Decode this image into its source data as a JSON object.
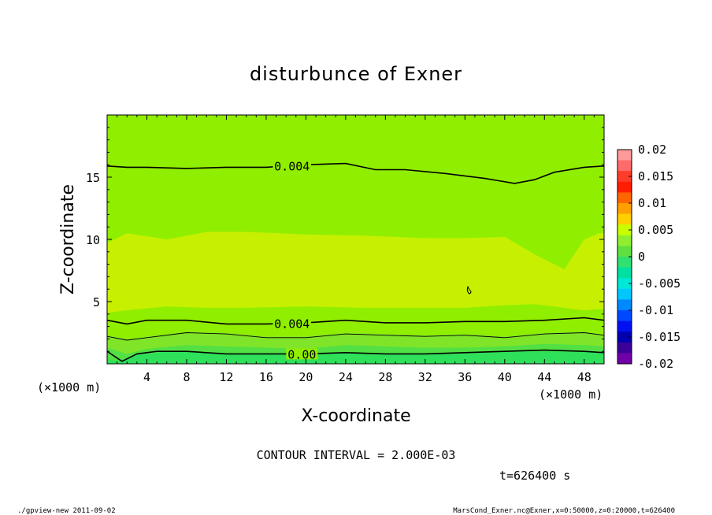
{
  "chart_data": {
    "type": "heatmap",
    "title": "disturbunce of Exner",
    "xlabel": "X-coordinate",
    "ylabel": "Z-coordinate",
    "x_unit": "(×1000 m)",
    "y_unit": "(×1000 m)",
    "xlim": [
      0,
      50
    ],
    "ylim": [
      0,
      20
    ],
    "xticks": [
      4,
      8,
      12,
      16,
      20,
      24,
      28,
      32,
      36,
      40,
      44,
      48
    ],
    "yticks": [
      5,
      10,
      15
    ],
    "colorbar": {
      "ticks": [
        "0.02",
        "0.015",
        "0.01",
        "0.005",
        "0",
        "-0.005",
        "-0.01",
        "-0.015",
        "-0.02"
      ],
      "values": [
        0.02,
        0.015,
        0.01,
        0.005,
        0,
        -0.005,
        -0.01,
        -0.015,
        -0.02
      ],
      "levels": [
        {
          "from": 0.018,
          "to": 0.02,
          "color": "#ff9a9a"
        },
        {
          "from": 0.016,
          "to": 0.018,
          "color": "#ff6a6a"
        },
        {
          "from": 0.014,
          "to": 0.016,
          "color": "#ff3c2a"
        },
        {
          "from": 0.012,
          "to": 0.014,
          "color": "#ff1e00"
        },
        {
          "from": 0.01,
          "to": 0.012,
          "color": "#ff6600"
        },
        {
          "from": 0.008,
          "to": 0.01,
          "color": "#ffa000"
        },
        {
          "from": 0.006,
          "to": 0.008,
          "color": "#ffd000"
        },
        {
          "from": 0.004,
          "to": 0.006,
          "color": "#c8ff00"
        },
        {
          "from": 0.002,
          "to": 0.004,
          "color": "#90ee30"
        },
        {
          "from": 0.0,
          "to": 0.002,
          "color": "#60e040"
        },
        {
          "from": -0.002,
          "to": 0.0,
          "color": "#30e070"
        },
        {
          "from": -0.004,
          "to": -0.002,
          "color": "#00e0a0"
        },
        {
          "from": -0.006,
          "to": -0.004,
          "color": "#00e8d8"
        },
        {
          "from": -0.008,
          "to": -0.006,
          "color": "#00c8ff"
        },
        {
          "from": -0.01,
          "to": -0.008,
          "color": "#0088ff"
        },
        {
          "from": -0.012,
          "to": -0.01,
          "color": "#0048ff"
        },
        {
          "from": -0.014,
          "to": -0.012,
          "color": "#0010f0"
        },
        {
          "from": -0.016,
          "to": -0.014,
          "color": "#0000b0"
        },
        {
          "from": -0.018,
          "to": -0.016,
          "color": "#3a0098"
        },
        {
          "from": -0.02,
          "to": -0.018,
          "color": "#7000a8"
        }
      ]
    },
    "bands": [
      {
        "level": 0.0045,
        "color": "#c6f000",
        "x": [
          0,
          2,
          6,
          10,
          14,
          20,
          26,
          32,
          36,
          40,
          43,
          46,
          48,
          49.5,
          50
        ],
        "y_top": [
          9.7,
          10.5,
          10.0,
          10.6,
          10.6,
          10.4,
          10.3,
          10.1,
          10.1,
          10.2,
          8.8,
          7.6,
          10.0,
          10.5,
          10.5
        ],
        "y_bottom": [
          4.1,
          4.3,
          4.6,
          4.5,
          4.5,
          4.6,
          4.5,
          4.5,
          4.5,
          4.7,
          4.8,
          4.5,
          4.3,
          4.4,
          4.4
        ]
      },
      {
        "level": 0.003,
        "color": "#80e428",
        "x": [
          0,
          2,
          4,
          8,
          12,
          16,
          20,
          24,
          28,
          32,
          36,
          40,
          44,
          48,
          50
        ],
        "y_top": [
          2.3,
          2.0,
          2.2,
          2.6,
          2.5,
          2.2,
          2.2,
          2.5,
          2.4,
          2.3,
          2.4,
          2.2,
          2.5,
          2.6,
          2.3
        ],
        "y_bottom": [
          0,
          0,
          0,
          0,
          0,
          0,
          0,
          0,
          0,
          0,
          0,
          0,
          0,
          0,
          0
        ]
      },
      {
        "level": 0.001,
        "color": "#52e044",
        "x": [
          0,
          2,
          4,
          8,
          12,
          16,
          20,
          24,
          28,
          32,
          36,
          40,
          44,
          48,
          50
        ],
        "y_top": [
          1.3,
          0.8,
          1.2,
          1.5,
          1.4,
          1.3,
          1.2,
          1.5,
          1.4,
          1.3,
          1.3,
          1.4,
          1.6,
          1.5,
          1.4
        ],
        "y_bottom": [
          0,
          0,
          0,
          0,
          0,
          0,
          0,
          0,
          0,
          0,
          0,
          0,
          0,
          0,
          0
        ]
      },
      {
        "level": -0.0005,
        "color": "#2ee05a",
        "x": [
          0,
          1,
          3,
          6,
          10,
          14,
          18,
          22,
          26,
          30,
          34,
          38,
          42,
          46,
          50
        ],
        "y_top": [
          0.4,
          0.2,
          0.7,
          1.0,
          0.9,
          0.8,
          0.8,
          0.9,
          0.8,
          0.8,
          0.8,
          0.9,
          1.0,
          1.0,
          0.9
        ],
        "y_bottom": [
          0,
          0,
          0,
          0,
          0,
          0,
          0,
          0,
          0,
          0,
          0,
          0,
          0,
          0,
          0
        ]
      }
    ],
    "contours": [
      {
        "value": 0.004,
        "label": "0.004",
        "label_x": 18.6,
        "x": [
          0,
          2,
          4,
          8,
          12,
          16,
          20,
          24,
          27,
          30,
          34,
          38,
          41,
          43,
          45,
          48,
          50
        ],
        "y": [
          15.9,
          15.8,
          15.8,
          15.7,
          15.8,
          15.8,
          16.0,
          16.1,
          15.6,
          15.6,
          15.3,
          14.9,
          14.5,
          14.8,
          15.4,
          15.8,
          15.9
        ]
      },
      {
        "value": 0.004,
        "label": "0.004",
        "label_x": 18.6,
        "x": [
          0,
          2,
          4,
          8,
          12,
          16,
          20,
          24,
          28,
          32,
          36,
          40,
          44,
          48,
          50
        ],
        "y": [
          3.5,
          3.2,
          3.5,
          3.5,
          3.2,
          3.2,
          3.3,
          3.5,
          3.3,
          3.3,
          3.4,
          3.4,
          3.5,
          3.7,
          3.5
        ]
      },
      {
        "value": 0.002,
        "label": "",
        "label_x": 0,
        "x": [
          0,
          2,
          4,
          8,
          12,
          16,
          20,
          24,
          28,
          32,
          36,
          40,
          44,
          48,
          50
        ],
        "y": [
          2.2,
          1.9,
          2.1,
          2.5,
          2.4,
          2.1,
          2.1,
          2.4,
          2.3,
          2.2,
          2.3,
          2.1,
          2.4,
          2.5,
          2.3
        ]
      },
      {
        "value": 0.0,
        "label": "0.00",
        "label_x": 19.6,
        "x": [
          0,
          1.5,
          3,
          5,
          8,
          12,
          16,
          20,
          24,
          28,
          32,
          36,
          40,
          44,
          48,
          50
        ],
        "y": [
          1.0,
          0.2,
          0.8,
          1.0,
          1.0,
          0.8,
          0.8,
          0.8,
          0.9,
          0.8,
          0.8,
          0.9,
          1.0,
          1.1,
          1.0,
          0.9
        ]
      }
    ],
    "annotations": [
      "CONTOUR INTERVAL = 2.000E-03",
      "t=626400 s"
    ]
  },
  "footer": {
    "left": "./gpview-new   2011-09-02",
    "right": "MarsCond_Exner.nc@Exner,x=0:50000,z=0:20000,t=626400"
  },
  "colors": {
    "background": "#90ee00",
    "frame": "#000000"
  }
}
